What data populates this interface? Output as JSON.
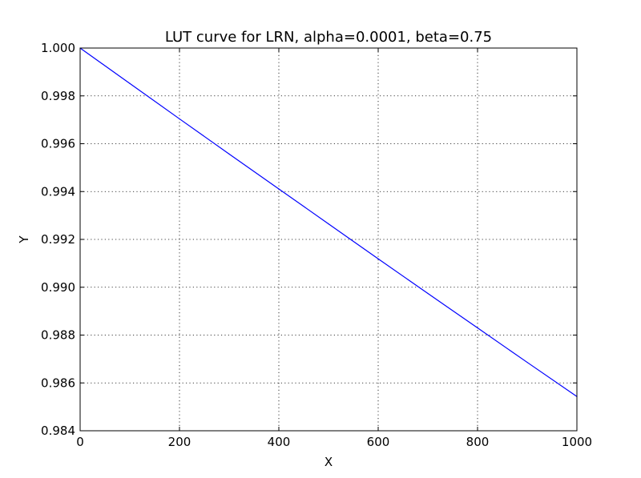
{
  "chart_data": {
    "type": "line",
    "title": "LUT curve for LRN, alpha=0.0001, beta=0.75",
    "xlabel": "X",
    "ylabel": "Y",
    "xlim": [
      0,
      1000
    ],
    "ylim": [
      0.984,
      1.0
    ],
    "grid": true,
    "x_ticks": [
      "0",
      "200",
      "400",
      "600",
      "800",
      "1000"
    ],
    "y_ticks": [
      "0.984",
      "0.986",
      "0.988",
      "0.990",
      "0.992",
      "0.994",
      "0.996",
      "0.998",
      "1.000"
    ],
    "series": [
      {
        "color": "#0000ff",
        "x": [
          0,
          100,
          200,
          300,
          400,
          500,
          600,
          700,
          800,
          900,
          1000
        ],
        "y": [
          1.0,
          0.99852,
          0.99704,
          0.99557,
          0.99411,
          0.99265,
          0.99119,
          0.98974,
          0.9883,
          0.98686,
          0.98543
        ]
      }
    ]
  }
}
